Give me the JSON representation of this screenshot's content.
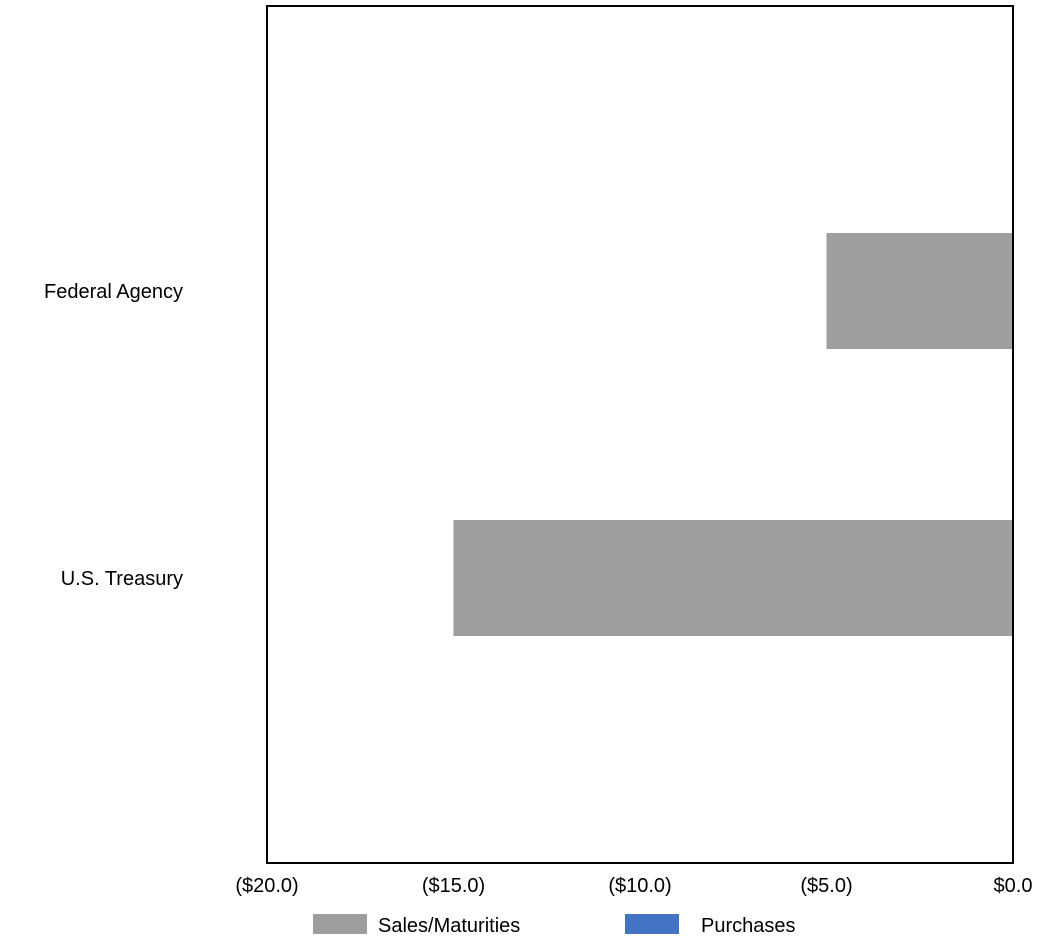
{
  "chart_data": {
    "type": "bar",
    "orientation": "horizontal",
    "categories": [
      "Federal Agency",
      "U.S. Treasury"
    ],
    "series": [
      {
        "name": "Sales/Maturities",
        "values": [
          -5.0,
          -15.0
        ],
        "color": "#9e9e9e"
      },
      {
        "name": "Purchases",
        "values": [
          0,
          0
        ],
        "color": "#4472c4"
      }
    ],
    "xlim": [
      -20,
      0
    ],
    "xticks": [
      -20,
      -15,
      -10,
      -5,
      0
    ],
    "xtick_labels": [
      "($20.0)",
      "($15.0)",
      "($10.0)",
      "($5.0)",
      "$0.0"
    ],
    "legend_position": "bottom",
    "grid": false
  }
}
